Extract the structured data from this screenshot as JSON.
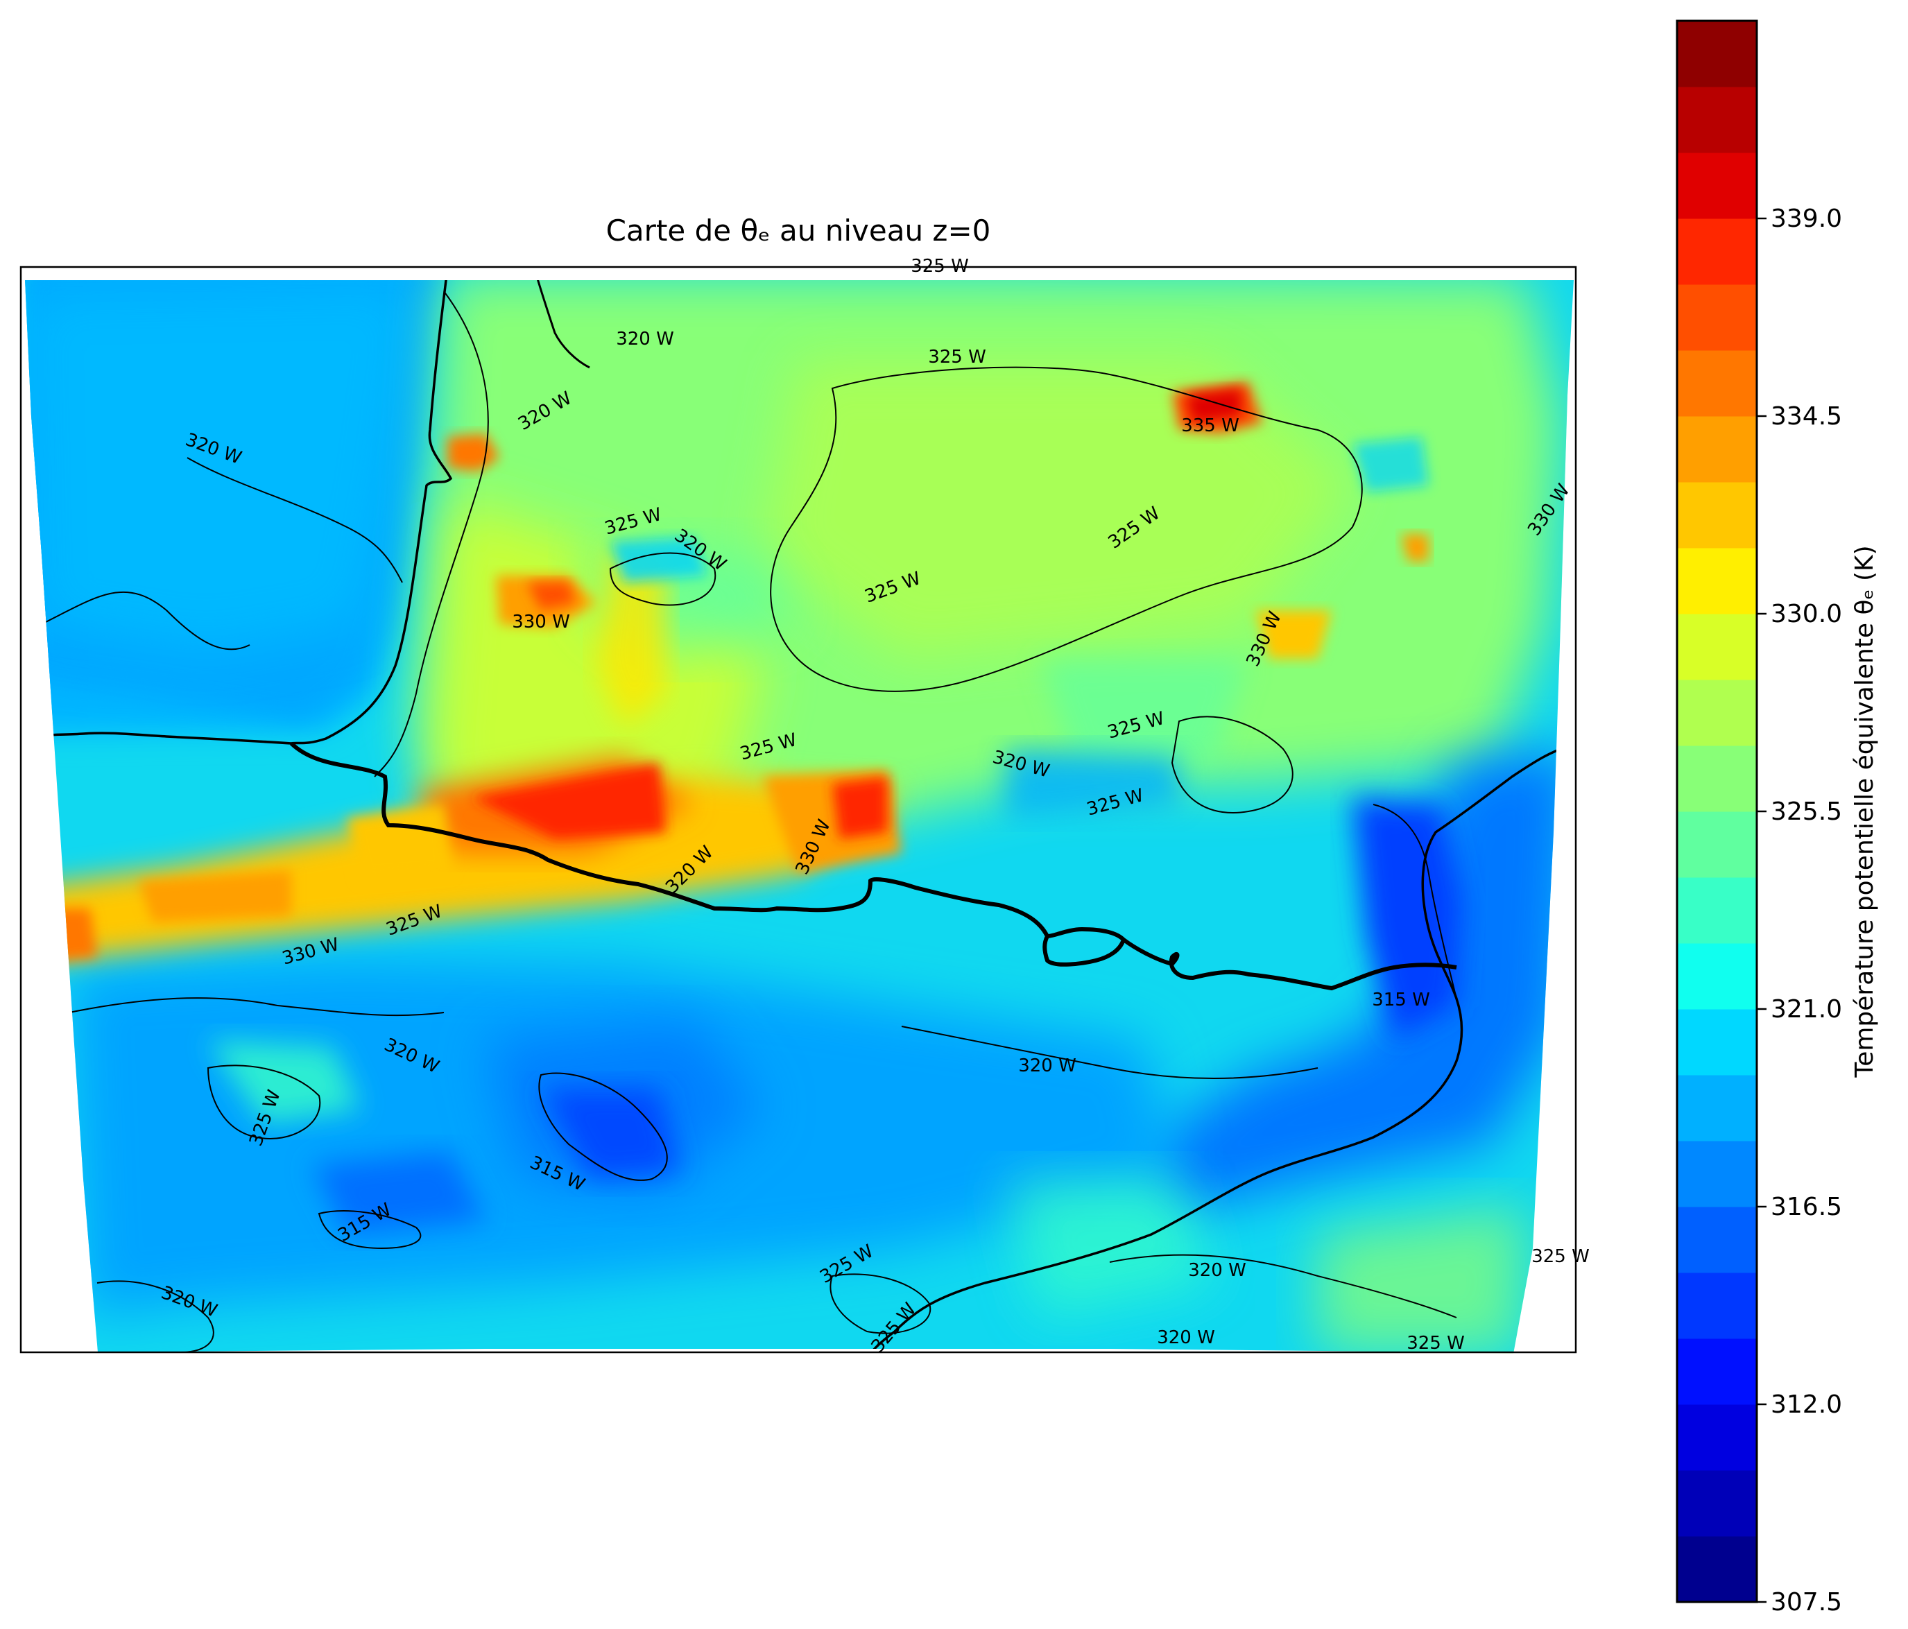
{
  "title": "Carte de θₑ au niveau z=0",
  "colorbar": {
    "label": "Température potentielle équivalente θₑ (K)",
    "min": 307.5,
    "max": 343.5,
    "step": 1.5,
    "tick_labels": [
      "307.5",
      "312.0",
      "316.5",
      "321.0",
      "325.5",
      "330.0",
      "334.5",
      "339.0"
    ],
    "colors": [
      "#00008f",
      "#0000b8",
      "#0000e0",
      "#0010ff",
      "#0038ff",
      "#0060ff",
      "#0088ff",
      "#00b0ff",
      "#00d8ff",
      "#10ffef",
      "#38ffc7",
      "#60ff9f",
      "#88ff77",
      "#b0ff4f",
      "#d8ff27",
      "#ffef00",
      "#ffc700",
      "#ff9f00",
      "#ff7700",
      "#ff4f00",
      "#ff2700",
      "#e00000",
      "#b80000",
      "#8f0000"
    ]
  },
  "map": {
    "contour_labels": [
      {
        "text": "325 W"
      },
      {
        "text": "320 W"
      },
      {
        "text": "325 W"
      },
      {
        "text": "320 W"
      },
      {
        "text": "320 W"
      },
      {
        "text": "325 W"
      },
      {
        "text": "320 W"
      },
      {
        "text": "325 W"
      },
      {
        "text": "325 W"
      },
      {
        "text": "330 W"
      },
      {
        "text": "330 W"
      },
      {
        "text": "335 W"
      },
      {
        "text": "330 W"
      },
      {
        "text": "325 W"
      },
      {
        "text": "325 W"
      },
      {
        "text": "320 W"
      },
      {
        "text": "325 W"
      },
      {
        "text": "330 W"
      },
      {
        "text": "320 W"
      },
      {
        "text": "325 W"
      },
      {
        "text": "330 W"
      },
      {
        "text": "320 W"
      },
      {
        "text": "325 W"
      },
      {
        "text": "315 W"
      },
      {
        "text": "320 W"
      },
      {
        "text": "315 W"
      },
      {
        "text": "315 W"
      },
      {
        "text": "320 W"
      },
      {
        "text": "325 W"
      },
      {
        "text": "325 W"
      },
      {
        "text": "320 W"
      },
      {
        "text": "320 W"
      },
      {
        "text": "325 W"
      },
      {
        "text": "325 W"
      }
    ]
  }
}
